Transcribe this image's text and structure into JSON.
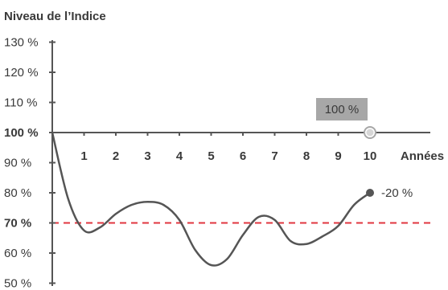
{
  "chart_data": {
    "type": "line",
    "ylabel": "Niveau de l’Indice",
    "xlabel": "Années",
    "x_ticks": [
      "1",
      "2",
      "3",
      "4",
      "5",
      "6",
      "7",
      "8",
      "9",
      "10"
    ],
    "y_ticks": [
      "130 %",
      "120 %",
      "110 %",
      "100 %",
      "90 %",
      "80 %",
      "70 %",
      "60 %",
      "50 %"
    ],
    "ylim": [
      45,
      130
    ],
    "xlim": [
      0,
      10
    ],
    "series": [
      {
        "x": [
          0,
          0.5,
          1.0,
          1.5,
          2.0,
          2.5,
          3.0,
          3.5,
          4.0,
          4.5,
          5.0,
          5.5,
          6.0,
          6.5,
          7.0,
          7.5,
          8.0,
          8.5,
          9.0,
          9.5,
          10
        ],
        "values": [
          100,
          78,
          67.5,
          68.5,
          73,
          76,
          77,
          76,
          71,
          61,
          56,
          58,
          66,
          72,
          71,
          64,
          63,
          65.5,
          69,
          76,
          80
        ]
      }
    ],
    "reference_lines": [
      {
        "value": 100,
        "label": "100 %",
        "color": "#1bb5a0"
      },
      {
        "value": 70,
        "label": "70 %",
        "color": "#e0353f"
      }
    ],
    "dashed_segment": {
      "x_start": 1,
      "x_end": 4,
      "y": 100,
      "color": "#1bb5a0"
    },
    "annotations": [
      {
        "text": "100 %",
        "x": 10,
        "y": 100,
        "boxed": true
      },
      {
        "text": "-20 %",
        "x": 10,
        "y": 80
      }
    ],
    "colors": {
      "line": "#555555",
      "axis": "#555555",
      "text": "#3a3a3a",
      "box": "#a7a7a7"
    }
  }
}
